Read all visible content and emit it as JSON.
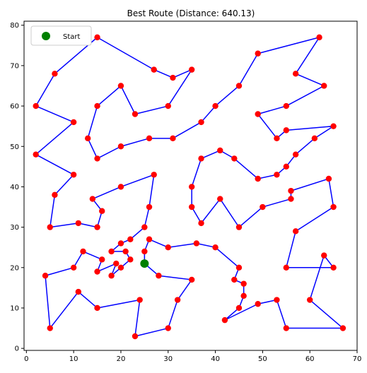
{
  "chart_data": {
    "type": "scatter",
    "title": "Best Route (Distance: 640.13)",
    "xlabel": "",
    "ylabel": "",
    "xlim": [
      -0.5,
      70
    ],
    "ylim": [
      -0.5,
      81
    ],
    "xticks": [
      0,
      10,
      20,
      30,
      40,
      50,
      60,
      70
    ],
    "yticks": [
      0,
      10,
      20,
      30,
      40,
      50,
      60,
      70,
      80
    ],
    "grid": false,
    "legend": {
      "position": "top-left",
      "entries": [
        {
          "label": "Start",
          "color": "#008000"
        }
      ]
    },
    "route_color": "#0000ff",
    "point_color": "#ff0000",
    "start_color": "#008000",
    "start": [
      25,
      21
    ],
    "route": [
      [
        25,
        21
      ],
      [
        25,
        24
      ],
      [
        26,
        27
      ],
      [
        30,
        25
      ],
      [
        36,
        26
      ],
      [
        40,
        25
      ],
      [
        45,
        20
      ],
      [
        44,
        17
      ],
      [
        46,
        16
      ],
      [
        46,
        13
      ],
      [
        45,
        10
      ],
      [
        42,
        7
      ],
      [
        49,
        11
      ],
      [
        53,
        12
      ],
      [
        55,
        5
      ],
      [
        67,
        5
      ],
      [
        60,
        12
      ],
      [
        63,
        23
      ],
      [
        65,
        20
      ],
      [
        55,
        20
      ],
      [
        57,
        29
      ],
      [
        65,
        35
      ],
      [
        64,
        42
      ],
      [
        56,
        39
      ],
      [
        56,
        37
      ],
      [
        50,
        35
      ],
      [
        45,
        30
      ],
      [
        41,
        37
      ],
      [
        37,
        31
      ],
      [
        35,
        35
      ],
      [
        35,
        40
      ],
      [
        37,
        47
      ],
      [
        41,
        49
      ],
      [
        44,
        47
      ],
      [
        49,
        42
      ],
      [
        53,
        43
      ],
      [
        55,
        45
      ],
      [
        57,
        48
      ],
      [
        61,
        52
      ],
      [
        65,
        55
      ],
      [
        55,
        54
      ],
      [
        53,
        52
      ],
      [
        49,
        58
      ],
      [
        55,
        60
      ],
      [
        63,
        65
      ],
      [
        57,
        68
      ],
      [
        62,
        77
      ],
      [
        49,
        73
      ],
      [
        45,
        65
      ],
      [
        40,
        60
      ],
      [
        37,
        56
      ],
      [
        31,
        52
      ],
      [
        26,
        52
      ],
      [
        20,
        50
      ],
      [
        15,
        47
      ],
      [
        13,
        52
      ],
      [
        15,
        60
      ],
      [
        20,
        65
      ],
      [
        23,
        58
      ],
      [
        30,
        60
      ],
      [
        35,
        69
      ],
      [
        31,
        67
      ],
      [
        27,
        69
      ],
      [
        15,
        77
      ],
      [
        6,
        68
      ],
      [
        2,
        60
      ],
      [
        10,
        56
      ],
      [
        2,
        48
      ],
      [
        10,
        43
      ],
      [
        6,
        38
      ],
      [
        5,
        30
      ],
      [
        11,
        31
      ],
      [
        15,
        30
      ],
      [
        16,
        34
      ],
      [
        14,
        37
      ],
      [
        20,
        40
      ],
      [
        27,
        43
      ],
      [
        26,
        35
      ],
      [
        25,
        30
      ],
      [
        22,
        27
      ],
      [
        20,
        26
      ],
      [
        18,
        24
      ],
      [
        21,
        24
      ],
      [
        22,
        22
      ],
      [
        20,
        20
      ],
      [
        18,
        18
      ],
      [
        19,
        21
      ],
      [
        15,
        19
      ],
      [
        16,
        22
      ],
      [
        12,
        24
      ],
      [
        10,
        20
      ],
      [
        4,
        18
      ],
      [
        5,
        5
      ],
      [
        11,
        14
      ],
      [
        15,
        10
      ],
      [
        24,
        12
      ],
      [
        23,
        3
      ],
      [
        30,
        5
      ],
      [
        32,
        12
      ],
      [
        35,
        17
      ],
      [
        28,
        18
      ],
      [
        25,
        21
      ]
    ]
  }
}
